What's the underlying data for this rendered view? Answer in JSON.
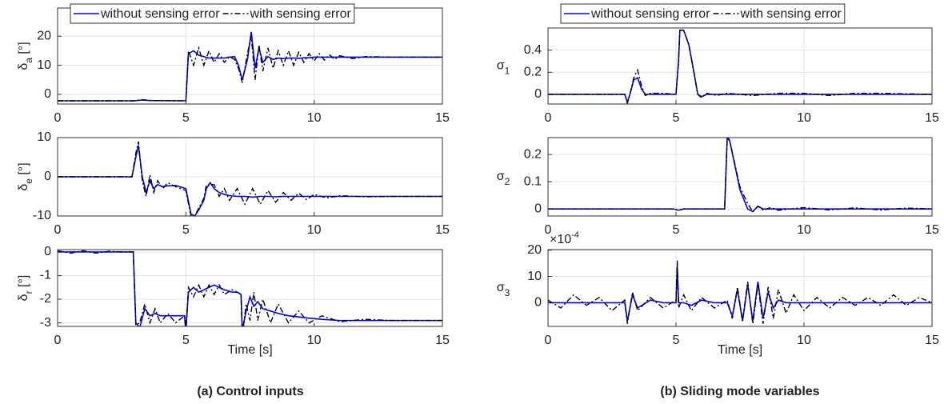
{
  "chart_data": [
    {
      "type": "line",
      "ylabel": [
        "δ",
        "a",
        " [°]"
      ],
      "ylabel_rotation": -90,
      "legend": true,
      "xlim": [
        0,
        15
      ],
      "xticks": [
        0,
        5,
        10,
        15
      ],
      "ylim": [
        -3.3,
        29.7
      ],
      "yticks": [
        0,
        10,
        20
      ],
      "grid": true,
      "x": [
        0,
        3,
        3.3,
        3.6,
        5.0,
        5.1,
        5.3,
        5.5,
        5.7,
        5.9,
        6.1,
        6.3,
        6.5,
        6.7,
        6.9,
        7.05,
        7.2,
        7.4,
        7.55,
        7.7,
        7.85,
        8.0,
        8.2,
        8.4,
        8.6,
        8.8,
        9.0,
        9.2,
        9.4,
        9.6,
        9.8,
        10.0,
        10.2,
        10.4,
        10.6,
        10.8,
        11.0,
        11.5,
        12,
        13,
        15
      ],
      "series": [
        {
          "name": "without sensing error",
          "color": "#0000ff",
          "dash": "solid",
          "values": [
            -2.2,
            -2.2,
            -1.9,
            -2.1,
            -2.2,
            14,
            15,
            13.5,
            13,
            12.5,
            12.5,
            12.5,
            12.5,
            12.8,
            13,
            10,
            5,
            12,
            21.5,
            9,
            16,
            11,
            13,
            12,
            12.5,
            12.3,
            12.5,
            12.5,
            12.4,
            12.6,
            12.6,
            12.8,
            12.8,
            12.8,
            12.8,
            12.8,
            12.8,
            12.8,
            12.8,
            12.8,
            12.8
          ]
        },
        {
          "name": "with sensing error",
          "color": "#000000",
          "dash": "dashdot",
          "values": [
            -2.2,
            -2.2,
            -1.8,
            -2.1,
            -2.2,
            15,
            10,
            16,
            10,
            15,
            11,
            14,
            11,
            13,
            12,
            9,
            4,
            14,
            20,
            5,
            17,
            8,
            16,
            9,
            15,
            10,
            15,
            10,
            14.5,
            11,
            14,
            11.5,
            14,
            11.8,
            13.6,
            12,
            13.3,
            12.3,
            13,
            12.8,
            12.8
          ]
        }
      ]
    },
    {
      "type": "line",
      "ylabel": [
        "δ",
        "e",
        " [°]"
      ],
      "ylabel_rotation": -90,
      "xlim": [
        0,
        15
      ],
      "xticks": [
        0,
        5,
        10,
        15
      ],
      "ylim": [
        -10,
        10
      ],
      "yticks": [
        -10,
        0,
        10
      ],
      "grid": true,
      "x": [
        0,
        2.9,
        3.05,
        3.15,
        3.3,
        3.45,
        3.6,
        3.75,
        3.9,
        4.1,
        4.3,
        4.6,
        5.0,
        5.2,
        5.35,
        5.5,
        5.7,
        5.8,
        5.95,
        6.1,
        6.3,
        6.5,
        6.7,
        7.0,
        7.3,
        7.6,
        7.9,
        8.2,
        8.5,
        8.8,
        9.1,
        9.4,
        9.7,
        10.0,
        10.5,
        11,
        12,
        13,
        15
      ],
      "series": [
        {
          "color": "#0000ff",
          "dash": "solid",
          "values": [
            0,
            0,
            5,
            8,
            0,
            -4,
            -1,
            -3,
            -2,
            -2.5,
            -2.3,
            -2.2,
            -3,
            -9.5,
            -10,
            -8.5,
            -6,
            -3,
            -1.5,
            -3,
            -4,
            -4.5,
            -4.8,
            -5,
            -5,
            -5.2,
            -5,
            -5,
            -5.1,
            -5,
            -5,
            -5,
            -5,
            -5,
            -5,
            -5,
            -5,
            -5,
            -5
          ]
        },
        {
          "color": "#000000",
          "dash": "dashdot",
          "values": [
            0,
            0,
            6,
            9,
            -1,
            -5,
            0.5,
            -4,
            -1,
            -3,
            -1.5,
            -2.5,
            -3.5,
            -10,
            -10,
            -8,
            -5.5,
            -2,
            -2,
            -2,
            -5,
            -3,
            -6,
            -3,
            -7,
            -3,
            -7,
            -3.5,
            -6.5,
            -4,
            -6,
            -4.2,
            -5.8,
            -4.5,
            -5.4,
            -4.8,
            -5.1,
            -5,
            -5
          ]
        }
      ]
    },
    {
      "type": "line",
      "ylabel": [
        "δ",
        "r",
        " [°]"
      ],
      "ylabel_rotation": -90,
      "xlabel": "Time [s]",
      "xlim": [
        0,
        15
      ],
      "xticks": [
        0,
        5,
        10,
        15
      ],
      "ylim": [
        -3.15,
        0.1
      ],
      "yticks": [
        -3,
        -2,
        -1,
        0
      ],
      "grid": true,
      "x": [
        0,
        0.5,
        1,
        1.5,
        2,
        2.5,
        2.95,
        3.05,
        3.2,
        3.4,
        3.6,
        3.8,
        4.0,
        4.3,
        4.6,
        4.95,
        5.0,
        5.1,
        5.3,
        5.5,
        5.7,
        5.9,
        6.1,
        6.3,
        6.5,
        6.8,
        7.0,
        7.15,
        7.2,
        7.35,
        7.5,
        7.65,
        7.8,
        8.0,
        8.3,
        8.6,
        9.0,
        9.4,
        9.8,
        10.3,
        11,
        12,
        13,
        14,
        15
      ],
      "series": [
        {
          "color": "#0000ff",
          "dash": "solid",
          "values": [
            0,
            0,
            0,
            0,
            0,
            0,
            0,
            -3,
            -3.2,
            -2.4,
            -2.7,
            -2.6,
            -2.7,
            -2.7,
            -2.7,
            -2.7,
            -3.3,
            -1.7,
            -1.5,
            -1.7,
            -1.6,
            -1.5,
            -1.4,
            -1.5,
            -1.6,
            -1.7,
            -1.7,
            -1.8,
            -3.3,
            -2.5,
            -1.9,
            -2.3,
            -2.1,
            -2.4,
            -2.5,
            -2.6,
            -2.7,
            -2.75,
            -2.8,
            -2.85,
            -2.9,
            -2.9,
            -2.9,
            -2.9,
            -2.9
          ]
        },
        {
          "color": "#000000",
          "dash": "dashdot",
          "values": [
            0.05,
            -0.05,
            0.05,
            -0.05,
            0.03,
            0,
            0,
            -3.1,
            -3,
            -2.2,
            -3,
            -2.4,
            -3,
            -2.6,
            -3,
            -2.7,
            -3.5,
            -1.5,
            -1.9,
            -1.4,
            -1.9,
            -1.4,
            -1.8,
            -1.4,
            -1.8,
            -1.6,
            -1.7,
            -1.8,
            -3.6,
            -2.2,
            -2.9,
            -1.7,
            -2.9,
            -2,
            -3,
            -2.2,
            -3,
            -2.5,
            -3,
            -2.7,
            -2.95,
            -2.85,
            -2.9,
            -2.9,
            -2.9
          ]
        }
      ]
    },
    {
      "type": "line",
      "ylabel": [
        "σ",
        "1"
      ],
      "ylabel_rotation": 0,
      "legend": true,
      "xlim": [
        0,
        15
      ],
      "xticks": [
        0,
        5,
        10,
        15
      ],
      "ylim": [
        -0.087,
        0.6
      ],
      "yticks": [
        0,
        0.2,
        0.4
      ],
      "grid": true,
      "x": [
        0,
        3.0,
        3.1,
        3.2,
        3.35,
        3.5,
        3.65,
        3.8,
        4.0,
        4.5,
        5.0,
        5.1,
        5.15,
        5.3,
        5.5,
        5.7,
        5.85,
        6.0,
        6.2,
        6.6,
        7,
        8,
        9,
        10,
        11,
        12,
        13,
        15
      ],
      "series": [
        {
          "name": "without sensing error",
          "color": "#0000ff",
          "dash": "solid",
          "values": [
            0,
            0,
            -0.07,
            0,
            0.13,
            0.15,
            0.05,
            0,
            0,
            0,
            0,
            0.3,
            0.58,
            0.58,
            0.45,
            0.2,
            0,
            -0.02,
            0,
            0,
            0,
            0,
            0,
            0,
            0,
            0,
            0,
            0
          ]
        },
        {
          "name": "with sensing error",
          "color": "#000000",
          "dash": "dashdot",
          "values": [
            0,
            0,
            -0.08,
            0,
            0.15,
            0.22,
            0.08,
            -0.01,
            0.01,
            0.01,
            0,
            0.3,
            0.58,
            0.58,
            0.45,
            0.2,
            0,
            -0.03,
            0.01,
            -0.01,
            0.01,
            -0.01,
            0.01,
            0.01,
            -0.01,
            0.01,
            0.01,
            0
          ]
        }
      ]
    },
    {
      "type": "line",
      "ylabel": [
        "σ",
        "2"
      ],
      "ylabel_rotation": 0,
      "xlim": [
        0,
        15
      ],
      "xticks": [
        0,
        5,
        10,
        15
      ],
      "ylim": [
        -0.026,
        0.262
      ],
      "yticks": [
        0,
        0.1,
        0.2
      ],
      "grid": true,
      "x": [
        0,
        4.9,
        5.1,
        5.3,
        6.9,
        7.0,
        7.1,
        7.5,
        7.8,
        8.0,
        8.2,
        8.4,
        8.7,
        9,
        10,
        11,
        12,
        13,
        14,
        15
      ],
      "series": [
        {
          "color": "#0000ff",
          "dash": "solid",
          "values": [
            0,
            0,
            -0.005,
            0,
            0,
            0.26,
            0.25,
            0.07,
            0,
            -0.01,
            0.01,
            0,
            0,
            0,
            0,
            0,
            0,
            0,
            0,
            0
          ]
        },
        {
          "color": "#000000",
          "dash": "dashdot",
          "values": [
            0,
            0,
            -0.005,
            0,
            0,
            0.27,
            0.25,
            0.08,
            0.02,
            -0.01,
            0.01,
            -0.005,
            0.005,
            -0.005,
            0.005,
            -0.004,
            0.004,
            -0.004,
            0.003,
            0
          ]
        }
      ]
    },
    {
      "type": "line",
      "ylabel": [
        "σ",
        "3"
      ],
      "ylabel_rotation": 0,
      "xlabel": "Time [s]",
      "y_multiplier": [
        "×10",
        "-4"
      ],
      "xlim": [
        0,
        15
      ],
      "xticks": [
        0,
        5,
        10,
        15
      ],
      "ylim": [
        -9,
        20.2
      ],
      "yticks": [
        0,
        10,
        20
      ],
      "grid": true,
      "x": [
        0,
        0.5,
        1,
        1.5,
        2,
        2.5,
        3,
        3.1,
        3.3,
        3.5,
        4,
        4.5,
        5,
        5.05,
        5.1,
        5.3,
        5.6,
        6,
        6.5,
        7,
        7.2,
        7.4,
        7.6,
        7.8,
        8,
        8.2,
        8.4,
        8.6,
        8.8,
        9,
        9.3,
        9.6,
        10,
        10.5,
        11,
        11.5,
        12,
        12.5,
        13,
        13.5,
        14,
        14.5,
        15
      ],
      "series": [
        {
          "color": "#0000ff",
          "dash": "solid",
          "values": [
            0,
            0,
            0,
            0,
            0,
            0,
            0,
            -7,
            3,
            -2,
            1,
            0,
            0,
            14,
            0,
            0,
            -1,
            1,
            0,
            0,
            -5,
            5,
            -7,
            7,
            -7,
            8,
            -6,
            4,
            -2,
            1,
            0,
            0,
            0,
            0,
            0,
            0,
            0,
            0,
            0,
            0,
            0,
            0,
            0
          ]
        },
        {
          "color": "#000000",
          "dash": "dashdot",
          "values": [
            1,
            -2,
            3,
            -1,
            2,
            -3,
            1,
            -8,
            4,
            -3,
            2,
            -2,
            1,
            16,
            -2,
            3,
            -3,
            2,
            -2,
            1,
            -6,
            6,
            -7,
            8,
            -8,
            7,
            -8,
            6,
            -6,
            5,
            -4,
            3,
            -3,
            2,
            -2,
            2,
            -1,
            2,
            -1,
            3,
            -1,
            2,
            0
          ]
        }
      ]
    }
  ],
  "captions": [
    "(a) Control inputs",
    "(b) Sliding mode variables"
  ]
}
